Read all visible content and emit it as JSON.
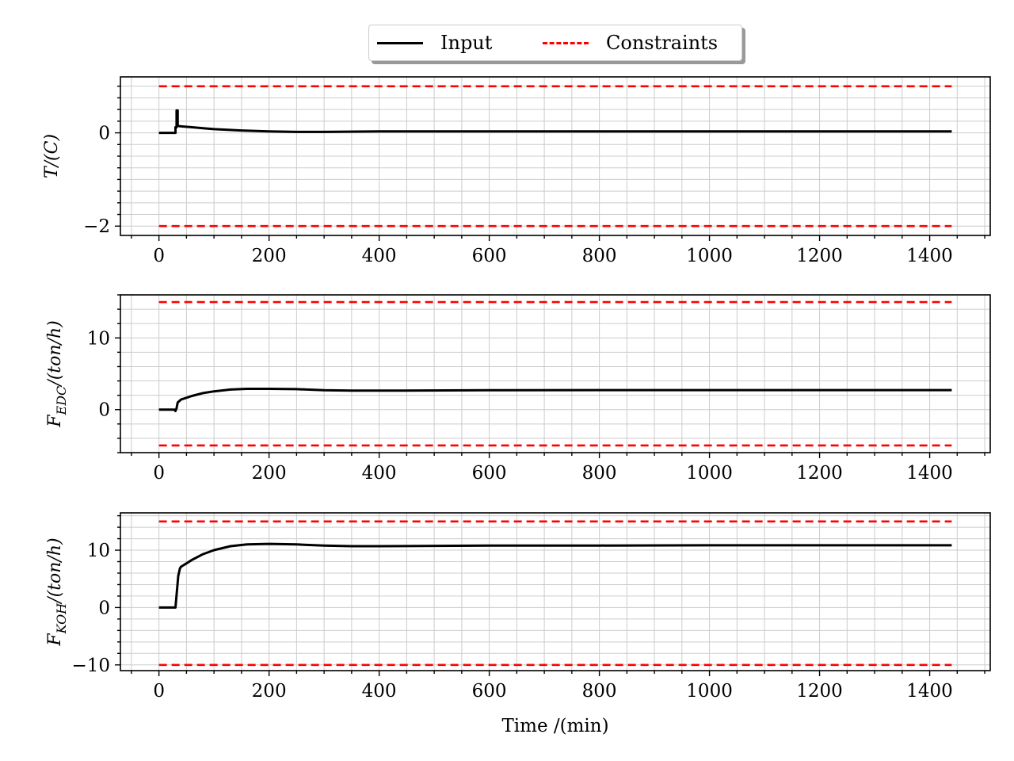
{
  "legend": {
    "input_label": "Input",
    "constraints_label": "Constraints"
  },
  "colors": {
    "input": "#000000",
    "constraints": "#ff0000",
    "grid": "#cccccc"
  },
  "chart_data": [
    {
      "type": "line",
      "ylabel": "T/(C)",
      "xlabel": "",
      "xlim": [
        -70,
        1510
      ],
      "ylim": [
        -2.2,
        1.2
      ],
      "xticks": [
        0,
        200,
        400,
        600,
        800,
        1000,
        1200,
        1400
      ],
      "yticks": [
        -2,
        0
      ],
      "ytick_labels": [
        "−2",
        "0"
      ],
      "grid": true,
      "series": [
        {
          "name": "Input",
          "style": "solid",
          "x": [
            0,
            30,
            30,
            32,
            32,
            34,
            34,
            40,
            60,
            80,
            100,
            150,
            200,
            250,
            300,
            400,
            600,
            800,
            1000,
            1200,
            1440
          ],
          "y": [
            0,
            0,
            0.12,
            0.12,
            0.48,
            0.48,
            0.15,
            0.14,
            0.12,
            0.1,
            0.08,
            0.05,
            0.03,
            0.02,
            0.02,
            0.03,
            0.03,
            0.03,
            0.03,
            0.03,
            0.03
          ]
        },
        {
          "name": "Constraints",
          "style": "dashed",
          "lines": [
            {
              "x": [
                0,
                1440
              ],
              "y": [
                1,
                1
              ]
            },
            {
              "x": [
                0,
                1440
              ],
              "y": [
                -2,
                -2
              ]
            }
          ]
        }
      ]
    },
    {
      "type": "line",
      "ylabel": "F_EDC/(ton/h)",
      "xlabel": "",
      "xlim": [
        -70,
        1510
      ],
      "ylim": [
        -6,
        16
      ],
      "xticks": [
        0,
        200,
        400,
        600,
        800,
        1000,
        1200,
        1400
      ],
      "yticks": [
        0,
        10
      ],
      "ytick_labels": [
        "0",
        "10"
      ],
      "grid": true,
      "series": [
        {
          "name": "Input",
          "style": "solid",
          "x": [
            0,
            28,
            30,
            32,
            34,
            40,
            60,
            80,
            100,
            130,
            160,
            200,
            250,
            300,
            350,
            400,
            600,
            800,
            1000,
            1200,
            1440
          ],
          "y": [
            0,
            0,
            -0.2,
            0.2,
            1.0,
            1.4,
            1.9,
            2.3,
            2.55,
            2.8,
            2.9,
            2.9,
            2.85,
            2.7,
            2.65,
            2.65,
            2.7,
            2.72,
            2.72,
            2.72,
            2.72
          ]
        },
        {
          "name": "Constraints",
          "style": "dashed",
          "lines": [
            {
              "x": [
                0,
                1440
              ],
              "y": [
                15,
                15
              ]
            },
            {
              "x": [
                0,
                1440
              ],
              "y": [
                -5,
                -5
              ]
            }
          ]
        }
      ]
    },
    {
      "type": "line",
      "ylabel": "F_KOH/(ton/h)",
      "xlabel": "Time /(min)",
      "xlim": [
        -70,
        1510
      ],
      "ylim": [
        -11,
        16.5
      ],
      "xticks": [
        0,
        200,
        400,
        600,
        800,
        1000,
        1200,
        1400
      ],
      "yticks": [
        -10,
        0,
        10
      ],
      "ytick_labels": [
        "−10",
        "0",
        "10"
      ],
      "grid": true,
      "series": [
        {
          "name": "Input",
          "style": "solid",
          "x": [
            0,
            30,
            35,
            38,
            40,
            50,
            60,
            80,
            100,
            130,
            160,
            200,
            250,
            300,
            350,
            400,
            600,
            800,
            1000,
            1200,
            1440
          ],
          "y": [
            0,
            0,
            5.5,
            6.8,
            7.1,
            7.7,
            8.3,
            9.3,
            10.0,
            10.7,
            11.0,
            11.1,
            11.0,
            10.8,
            10.7,
            10.7,
            10.8,
            10.8,
            10.85,
            10.85,
            10.85
          ]
        },
        {
          "name": "Constraints",
          "style": "dashed",
          "lines": [
            {
              "x": [
                0,
                1440
              ],
              "y": [
                15,
                15
              ]
            },
            {
              "x": [
                0,
                1440
              ],
              "y": [
                -10,
                -10
              ]
            }
          ]
        }
      ]
    }
  ]
}
